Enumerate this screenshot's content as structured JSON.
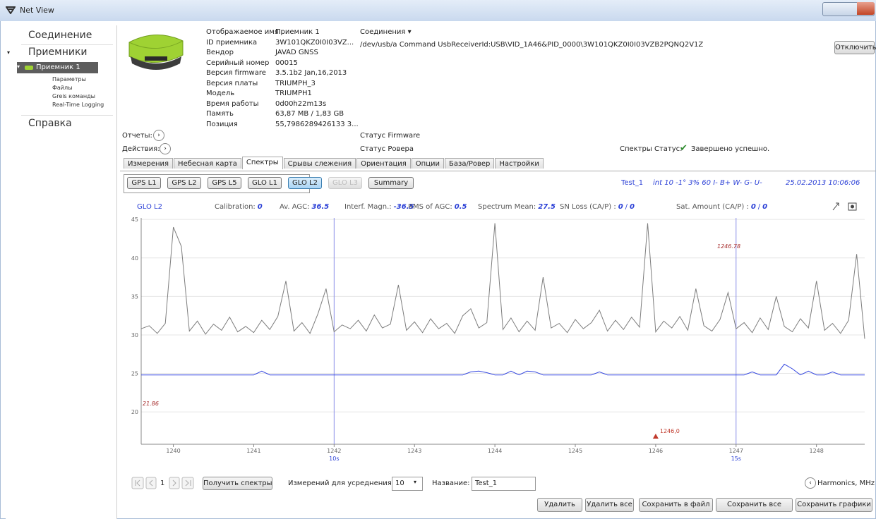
{
  "window": {
    "title": "Net View"
  },
  "sidebar": {
    "connection": "Соединение",
    "receivers": "Приемники",
    "receiver": "Приемник 1",
    "sub_items": [
      "Параметры",
      "Файлы",
      "Greis команды",
      "Real-Time Logging"
    ],
    "help": "Справка"
  },
  "receiver": {
    "fields": [
      {
        "label": "Отображаемое имя",
        "value": "Приемник 1"
      },
      {
        "label": "ID приемника",
        "value": "3W101QKZ0I0I03VZ..."
      },
      {
        "label": "Вендор",
        "value": "JAVAD GNSS"
      },
      {
        "label": "Серийный номер",
        "value": "00015"
      },
      {
        "label": "Версия firmware",
        "value": "3.5.1b2 Jan,16,2013"
      },
      {
        "label": "Версия платы",
        "value": "TRIUMPH_3"
      },
      {
        "label": "Модель",
        "value": "TRIUMPH1"
      },
      {
        "label": "Время работы",
        "value": "0d00h22m13s"
      },
      {
        "label": "Память",
        "value": "63,87 MB / 1,83 GB"
      },
      {
        "label": "Позиция",
        "value": "55,7986289426133 3..."
      }
    ],
    "connections_label": "Соединения ▾",
    "connection_path": "/dev/usb/a Command UsbReceiverId:USB\\VID_1A46&PID_0000\\3W101QKZ0I0I03VZB2PQNQ2V1Z",
    "disconnect": "Отключить",
    "reports": "Отчеты:",
    "actions": "Действия:",
    "firmware_status": "Статус Firmware",
    "rover_status": "Статус  Ровера",
    "spectra_status_label": "Спектры Статус:",
    "spectra_status": "Завершено успешно."
  },
  "tabs": {
    "items": [
      "Измерения",
      "Небесная карта",
      "Спектры",
      "Срывы слежения",
      "Ориентация",
      "Опции",
      "База/Ровер",
      "Настройки"
    ],
    "active": 2
  },
  "spectrum_buttons": {
    "items": [
      "GPS L1",
      "GPS L2",
      "GPS L5",
      "GLO L1",
      "GLO L2",
      "GLO L3",
      "Summary"
    ],
    "active": 4,
    "disabled": 5
  },
  "session": {
    "name": "Test_1",
    "params": "int  10 -1° 3% 60 I- B+ W- G- U-",
    "date": "25.02.2013 10:06:06"
  },
  "stats": {
    "signal": "GLO L2",
    "items": [
      {
        "label": "Calibration:",
        "value": 0
      },
      {
        "label": "Av. AGC:",
        "value": 36.5
      },
      {
        "label": "Interf. Magn.:",
        "value": -36.5
      },
      {
        "label": "RMS of AGC:",
        "value": 0.5
      },
      {
        "label": "Spectrum Mean:",
        "value": 27.5
      },
      {
        "label": "SN Loss (CA/P) :",
        "value": 0,
        "separator": "/",
        "value2": 0
      },
      {
        "label": "Sat. Amount (CA/P) :",
        "value": 0,
        "separator": "/",
        "value2": 0
      }
    ]
  },
  "chart_data": {
    "type": "line",
    "x": [
      1239.6,
      1239.7,
      1239.8,
      1239.9,
      1240,
      1240.1,
      1240.2,
      1240.3,
      1240.4,
      1240.5,
      1240.6,
      1240.7,
      1240.8,
      1240.9,
      1241,
      1241.1,
      1241.2,
      1241.3,
      1241.4,
      1241.5,
      1241.6,
      1241.7,
      1241.8,
      1241.9,
      1242,
      1242.1,
      1242.2,
      1242.3,
      1242.4,
      1242.5,
      1242.6,
      1242.7,
      1242.8,
      1242.9,
      1243,
      1243.1,
      1243.2,
      1243.3,
      1243.4,
      1243.5,
      1243.6,
      1243.7,
      1243.8,
      1243.9,
      1244,
      1244.1,
      1244.2,
      1244.3,
      1244.4,
      1244.5,
      1244.6,
      1244.7,
      1244.8,
      1244.9,
      1245,
      1245.1,
      1245.2,
      1245.3,
      1245.4,
      1245.5,
      1245.6,
      1245.7,
      1245.8,
      1245.9,
      1246,
      1246.1,
      1246.2,
      1246.3,
      1246.4,
      1246.5,
      1246.6,
      1246.7,
      1246.8,
      1246.9,
      1247,
      1247.1,
      1247.2,
      1247.3,
      1247.4,
      1247.5,
      1247.6,
      1247.7,
      1247.8,
      1247.9,
      1248,
      1248.1,
      1248.2,
      1248.3,
      1248.4,
      1248.5,
      1248.6
    ],
    "series": [
      {
        "color": "#7d7d7d",
        "values": [
          30.8,
          31.2,
          30.2,
          31.5,
          44,
          41.5,
          30.5,
          31.8,
          30.1,
          31.4,
          30.6,
          32.3,
          30.4,
          31.1,
          30.3,
          31.9,
          30.7,
          32.4,
          37,
          30.5,
          31.6,
          30.2,
          32.8,
          36,
          30.4,
          31.3,
          30.8,
          31.9,
          30.5,
          32.6,
          30.9,
          31.4,
          36.5,
          30.6,
          31.7,
          30.3,
          32.1,
          30.8,
          31.5,
          30.2,
          32.5,
          33.4,
          30.9,
          31.6,
          44.5,
          30.7,
          32.2,
          30.4,
          31.8,
          30.6,
          37.5,
          30.9,
          31.5,
          30.3,
          32,
          30.8,
          31.6,
          33.2,
          30.5,
          31.9,
          30.7,
          32.3,
          31,
          44.5,
          30.4,
          31.8,
          30.9,
          32.4,
          30.6,
          36,
          31.2,
          30.5,
          32,
          35.5,
          30.8,
          31.6,
          30.3,
          32.2,
          30.7,
          35,
          31.1,
          30.4,
          32.1,
          30.9,
          37,
          30.6,
          31.5,
          30.2,
          31.9,
          40.5,
          29.5
        ]
      },
      {
        "color": "#3346e0",
        "values": [
          24.8,
          24.8,
          24.8,
          24.8,
          24.8,
          24.8,
          24.8,
          24.8,
          24.8,
          24.8,
          24.8,
          24.8,
          24.8,
          24.8,
          24.8,
          25.3,
          24.8,
          24.8,
          24.8,
          24.8,
          24.8,
          24.8,
          24.8,
          24.8,
          24.8,
          24.8,
          24.8,
          24.8,
          24.8,
          24.8,
          24.8,
          24.8,
          24.8,
          24.8,
          24.8,
          24.8,
          24.8,
          24.8,
          24.8,
          24.8,
          24.8,
          25.2,
          25.3,
          25.1,
          24.8,
          24.8,
          25.3,
          24.8,
          25.3,
          25.2,
          24.8,
          24.8,
          24.8,
          24.8,
          24.8,
          24.8,
          24.8,
          25.2,
          24.8,
          24.8,
          24.8,
          24.8,
          24.8,
          24.8,
          24.8,
          24.8,
          24.8,
          24.8,
          24.8,
          24.8,
          24.8,
          24.8,
          24.8,
          24.8,
          24.8,
          24.8,
          25.2,
          24.8,
          24.8,
          24.8,
          26.2,
          25.6,
          24.8,
          25.3,
          24.8,
          24.8,
          25.2,
          24.8,
          24.8,
          24.8,
          24.8
        ]
      }
    ],
    "xlim": [
      1239.6,
      1248.6
    ],
    "ylim": [
      15.8,
      45.2
    ],
    "xticks": [
      1240,
      1241,
      1242,
      1243,
      1244,
      1245,
      1246,
      1247,
      1248
    ],
    "yticks": [
      20,
      25,
      30,
      35,
      40,
      45
    ],
    "grid": true,
    "markers": [
      {
        "x": 1242,
        "label": "10s"
      },
      {
        "x": 1247,
        "label": "15s"
      }
    ],
    "cursor": {
      "x": 1246,
      "label": "1246,0"
    },
    "max_label": "1246.78",
    "min_label": "21.86"
  },
  "controls": {
    "page": "1",
    "get_spectra": "Получить спектры",
    "averaging_label": "Измерений для усреднения:",
    "averaging_value": "10",
    "name_label": "Название:",
    "name_value": "Test_1",
    "harmonics": "Harmonics, MHz",
    "buttons": [
      "Удалить",
      "Удалить все",
      "Сохранить в файл",
      "Сохранить все",
      "Сохранить графики"
    ]
  }
}
